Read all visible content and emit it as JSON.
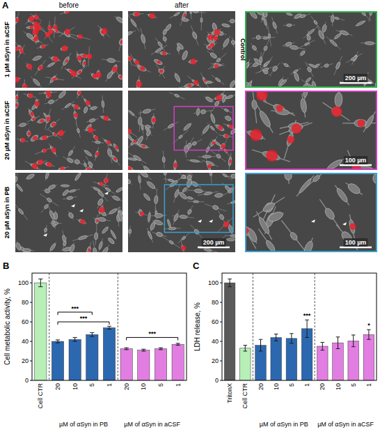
{
  "panel_a": {
    "panel_label": "A",
    "columns": [
      "before",
      "after"
    ],
    "rows": [
      "1 µM aSyn in aCSF",
      "20 µM aSyn in aCSF",
      "20 µM aSyn in PB"
    ],
    "control_label": "Control",
    "scale_bars": [
      "200 µm",
      "100 µm",
      "200 µm",
      "100 µm"
    ]
  },
  "chart_data": [
    {
      "type": "bar",
      "panel_label": "B",
      "y_label": "Cell metabolic activity, %",
      "categories": [
        "Cell CTR",
        "20",
        "10",
        "5",
        "1",
        "20",
        "10",
        "5",
        "1"
      ],
      "values": [
        100,
        40,
        42,
        47,
        54,
        32.5,
        31,
        32.5,
        37
      ],
      "errors": [
        4,
        1.5,
        2,
        2,
        1.5,
        1,
        1,
        1,
        1
      ],
      "colors": [
        "#b7efb7",
        "#2c68b0",
        "#2c68b0",
        "#2c68b0",
        "#2c68b0",
        "#e27ee2",
        "#e27ee2",
        "#e27ee2",
        "#e27ee2"
      ],
      "ylim": [
        0,
        110
      ],
      "yticks": [
        0,
        20,
        40,
        60,
        80,
        100
      ],
      "grid": false,
      "groups": [
        {
          "label": "µM of αSyn in PB",
          "start": 1,
          "end": 4
        },
        {
          "label": "µM of αSyn in aCSF",
          "start": 5,
          "end": 8
        }
      ],
      "brackets": [
        {
          "label": "***",
          "from": 1,
          "to": 3,
          "y": 70
        },
        {
          "label": "***",
          "from": 1,
          "to": 4,
          "y": 60
        },
        {
          "label": "***",
          "from": 5,
          "to": 8,
          "y": 44
        }
      ],
      "significance": []
    },
    {
      "type": "bar",
      "panel_label": "C",
      "y_label": "LDH release, %",
      "categories": [
        "TritonX",
        "Cell CTR",
        "20",
        "10",
        "5",
        "1",
        "20",
        "10",
        "5",
        "1"
      ],
      "values": [
        100,
        33,
        36,
        44,
        43,
        53,
        35,
        38.5,
        40.5,
        47
      ],
      "errors": [
        4,
        3,
        6,
        3.5,
        5,
        9,
        4,
        6,
        6,
        5
      ],
      "colors": [
        "#5a5a5a",
        "#b7efb7",
        "#2c68b0",
        "#2c68b0",
        "#2c68b0",
        "#2c68b0",
        "#e27ee2",
        "#e27ee2",
        "#e27ee2",
        "#e27ee2"
      ],
      "ylim": [
        0,
        110
      ],
      "yticks": [
        0,
        20,
        40,
        60,
        80,
        100
      ],
      "grid": false,
      "groups": [
        {
          "label": "µM of αSyn in PB",
          "start": 2,
          "end": 5
        },
        {
          "label": "µM of αSyn in aCSF",
          "start": 6,
          "end": 9
        }
      ],
      "brackets": [],
      "significance": [
        {
          "index": 5,
          "label": "***"
        },
        {
          "index": 9,
          "label": "*"
        }
      ]
    }
  ]
}
